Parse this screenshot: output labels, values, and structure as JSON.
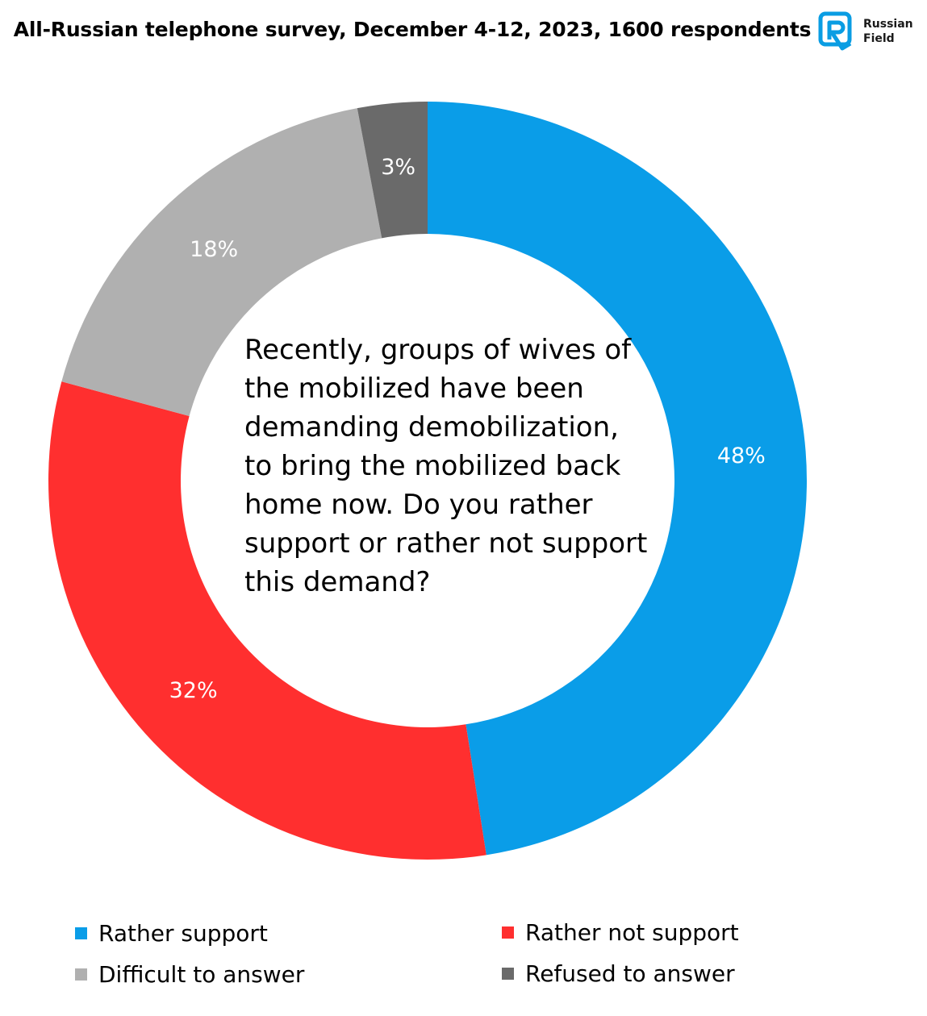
{
  "header": {
    "title": "All-Russian telephone survey, December 4-12, 2023, 1600 respondents"
  },
  "logo": {
    "line1": "Russian",
    "line2": "Field",
    "color": "#0a9de3"
  },
  "question": "Recently, groups of wives of the mobilized have been demanding demobilization, to bring the mobilized back home now. Do you rather support or rather not support this demand?",
  "chart_data": {
    "type": "pie",
    "donut": true,
    "categories": [
      "Rather support",
      "Rather not support",
      "Difficult to answer",
      "Refused to answer"
    ],
    "values": [
      48,
      32,
      18,
      3
    ],
    "labels": [
      "48%",
      "32%",
      "18%",
      "3%"
    ],
    "colors": [
      "#0a9de8",
      "#ff2f2f",
      "#b0b0b0",
      "#6a6a6a"
    ],
    "legend_placement": "bottom"
  },
  "legend": [
    {
      "label": "Rather support",
      "color": "#0a9de8"
    },
    {
      "label": "Rather not support",
      "color": "#ff2f2f"
    },
    {
      "label": "Difficult to answer",
      "color": "#b0b0b0"
    },
    {
      "label": "Refused to answer",
      "color": "#6a6a6a"
    }
  ]
}
